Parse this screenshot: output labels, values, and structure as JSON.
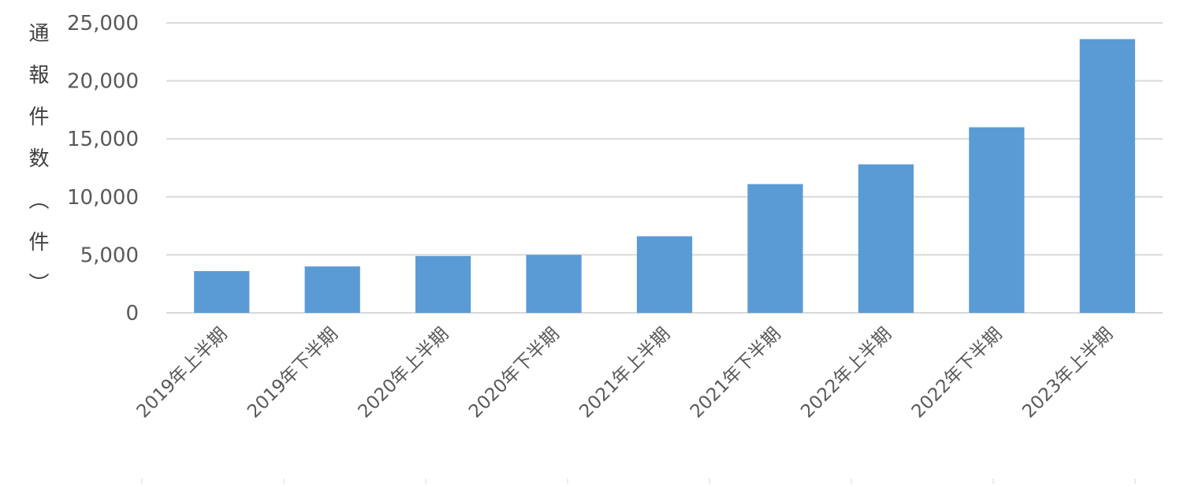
{
  "chart_data": {
    "type": "bar",
    "y_label": "通報件数（件）",
    "categories": [
      "2019年上半期",
      "2019年下半期",
      "2020年上半期",
      "2020年下半期",
      "2021年上半期",
      "2021年下半期",
      "2022年上半期",
      "2022年下半期",
      "2023年上半期"
    ],
    "values": [
      3600,
      4000,
      4900,
      5000,
      6600,
      11100,
      12800,
      16000,
      23600
    ],
    "color": "#5b9bd5",
    "ylim": [
      0,
      25000
    ],
    "yticks": [
      0,
      {
        "value": 5000,
        "label": "5,000"
      },
      {
        "value": 10000,
        "label": "10,000"
      },
      {
        "value": 15000,
        "label": "15,000"
      },
      {
        "value": 20000,
        "label": "20,000"
      },
      {
        "value": 25000,
        "label": "25,000"
      }
    ],
    "grid": true
  }
}
